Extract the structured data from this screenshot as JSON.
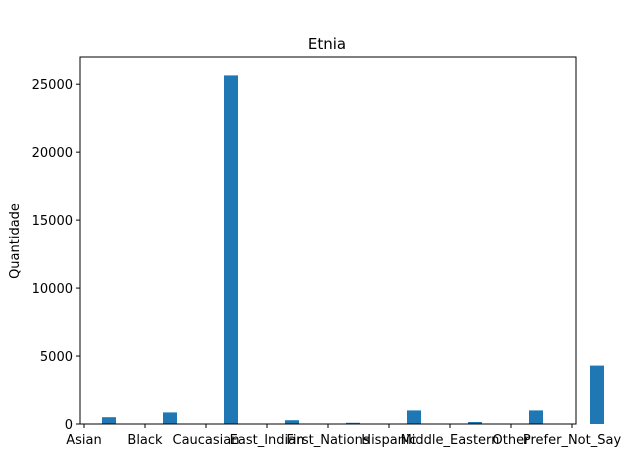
{
  "chart_data": {
    "type": "bar",
    "title": "Etnia",
    "xlabel": "",
    "ylabel": "Quantidade",
    "categories": [
      "Asian",
      "Black",
      "Caucasian",
      "East_Indian",
      "First_Nations",
      "Hispanic",
      "Middle_Eastern",
      "Other",
      "Prefer_Not_Say"
    ],
    "values": [
      500,
      850,
      25650,
      280,
      90,
      1000,
      150,
      1000,
      4300
    ],
    "ylim": [
      0,
      27000
    ],
    "yticks": [
      0,
      5000,
      10000,
      15000,
      20000,
      25000
    ],
    "grid": false,
    "color": "#1f77b4"
  }
}
